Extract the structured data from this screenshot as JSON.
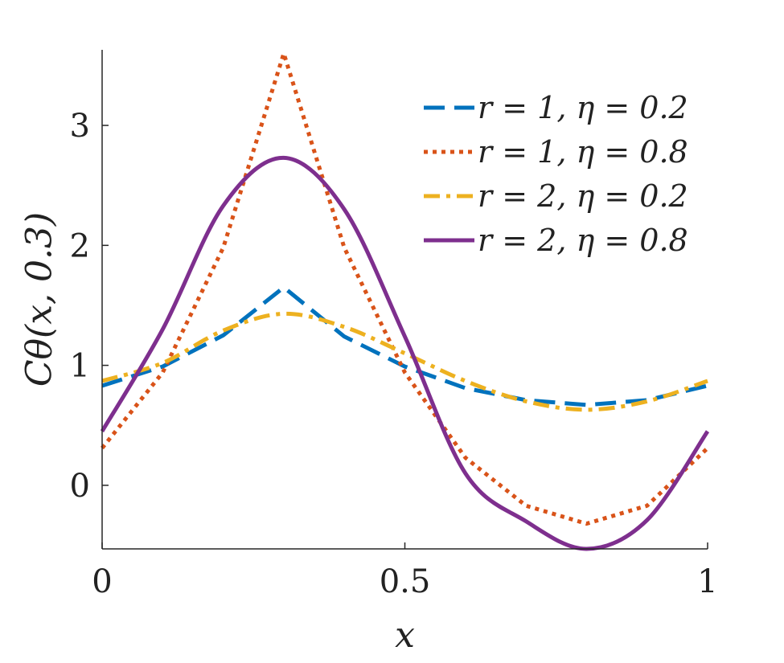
{
  "chart_data": {
    "type": "line",
    "title": "",
    "xlabel": "x",
    "ylabel": "Cθ(x, 0.3)",
    "xlim": [
      0,
      1
    ],
    "ylim": [
      -0.53,
      3.63
    ],
    "xticks": [
      0,
      0.5,
      1
    ],
    "xtick_labels": [
      "0",
      "0.5",
      "1"
    ],
    "yticks": [
      0,
      1,
      2,
      3
    ],
    "ytick_labels": [
      "0",
      "1",
      "2",
      "3"
    ],
    "grid": false,
    "legend_position": "top-right",
    "series": [
      {
        "name": "r = 1, η = 0.2",
        "color": "#0072BD",
        "style": "dashed",
        "x": [
          0,
          0.1,
          0.2,
          0.3,
          0.4,
          0.5,
          0.6,
          0.7,
          0.8,
          0.9,
          1.0
        ],
        "y": [
          0.83,
          0.99,
          1.25,
          1.65,
          1.24,
          0.99,
          0.81,
          0.71,
          0.67,
          0.71,
          0.83
        ]
      },
      {
        "name": "r = 1, η = 0.8",
        "color": "#D95319",
        "style": "dotted",
        "x": [
          0,
          0.1,
          0.2,
          0.3,
          0.4,
          0.5,
          0.6,
          0.7,
          0.8,
          0.9,
          1.0
        ],
        "y": [
          0.31,
          0.94,
          1.98,
          3.6,
          1.98,
          0.94,
          0.23,
          -0.17,
          -0.32,
          -0.17,
          0.31
        ]
      },
      {
        "name": "r = 2, η = 0.2",
        "color": "#EDB120",
        "style": "dashdot",
        "x": [
          0,
          0.1,
          0.2,
          0.3,
          0.4,
          0.5,
          0.6,
          0.7,
          0.8,
          0.9,
          1.0
        ],
        "y": [
          0.87,
          1.02,
          1.29,
          1.43,
          1.32,
          1.1,
          0.87,
          0.7,
          0.63,
          0.7,
          0.87
        ]
      },
      {
        "name": "r = 2, η = 0.8",
        "color": "#7E2F8E",
        "style": "solid",
        "x": [
          0,
          0.1,
          0.2,
          0.3,
          0.4,
          0.5,
          0.6,
          0.7,
          0.8,
          0.9,
          1.0
        ],
        "y": [
          0.45,
          1.3,
          2.33,
          2.73,
          2.3,
          1.24,
          0.1,
          -0.3,
          -0.53,
          -0.29,
          0.45
        ]
      }
    ]
  }
}
